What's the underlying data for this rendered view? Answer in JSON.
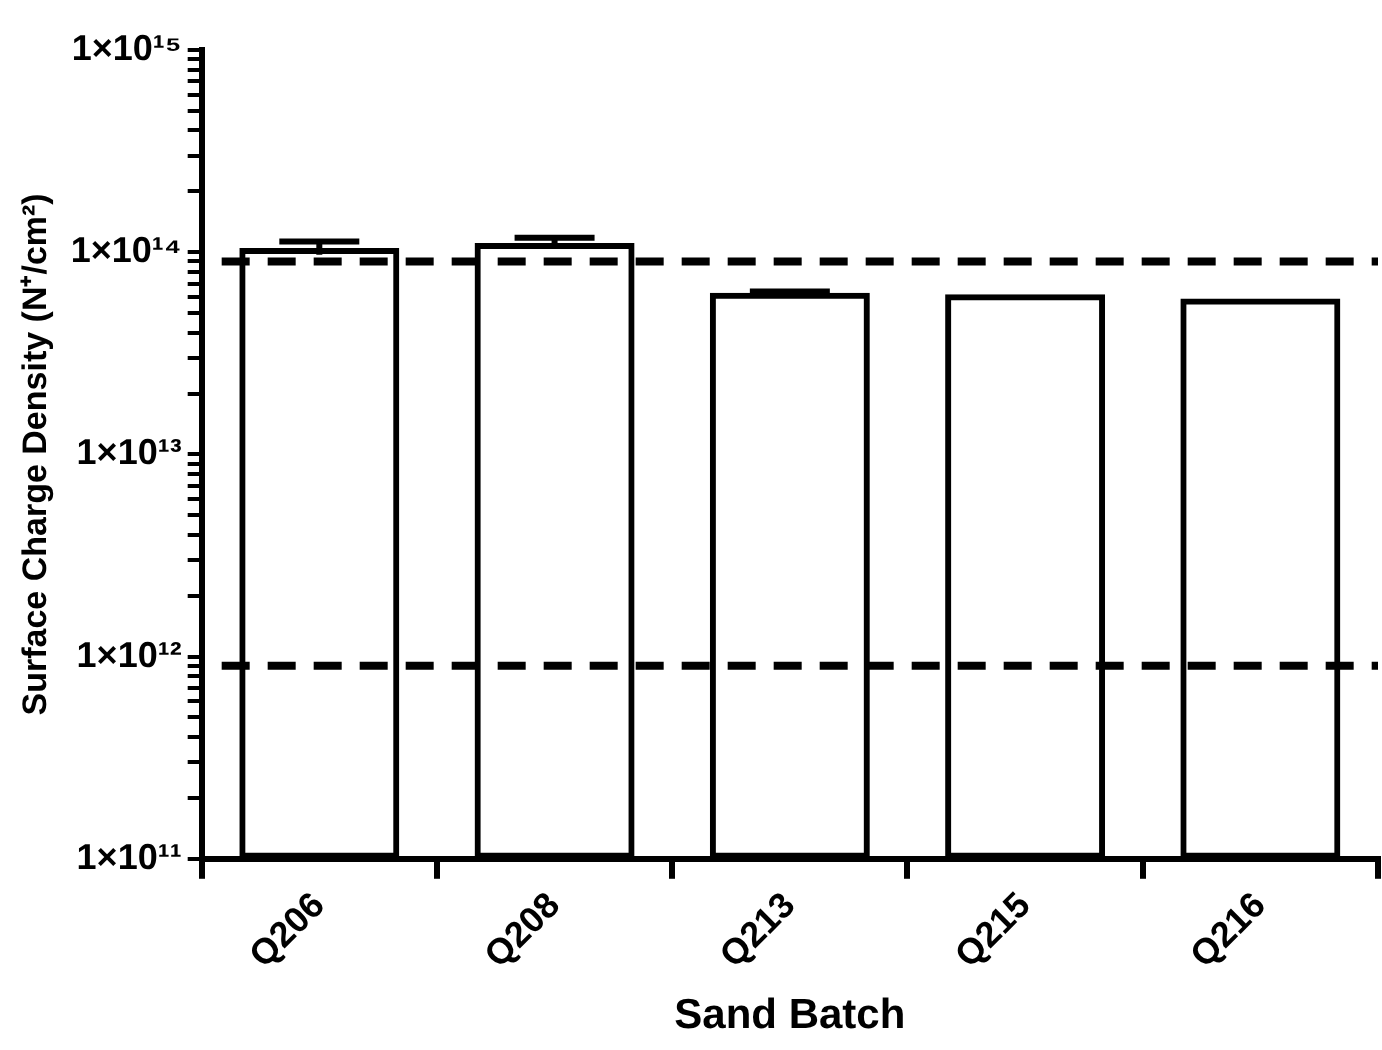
{
  "chart_data": {
    "type": "bar",
    "xlabel": "Sand Batch",
    "ylabel": "Surface Charge Density (N⁺/cm²)",
    "categories": [
      "Q206",
      "Q208",
      "Q213",
      "Q215",
      "Q216"
    ],
    "series": [
      {
        "color": "#000000",
        "values": [
          105000000000000.0,
          111000000000000.0,
          63000000000000.0,
          62000000000000.0,
          59000000000000.0
        ],
        "errors": [
          8000000000000.0,
          7000000000000.0,
          1000000000000.0,
          null,
          null
        ]
      }
    ],
    "log": true,
    "ylim": [
      100000000000.0,
      1000000000000000.0
    ],
    "yticks": [
      {
        "value": 100000000000.0,
        "label": "1×10¹¹"
      },
      {
        "value": 200000000000.0,
        "label": null
      },
      {
        "value": 300000000000.0,
        "label": null
      },
      {
        "value": 400000000000.0,
        "label": null
      },
      {
        "value": 500000000000.0,
        "label": null
      },
      {
        "value": 600000000000.0,
        "label": null
      },
      {
        "value": 700000000000.0,
        "label": null
      },
      {
        "value": 800000000000.0,
        "label": null
      },
      {
        "value": 900000000000.0,
        "label": null
      },
      {
        "value": 1000000000000.0,
        "label": "1×10¹²"
      },
      {
        "value": 2000000000000.0,
        "label": null
      },
      {
        "value": 3000000000000.0,
        "label": null
      },
      {
        "value": 4000000000000.0,
        "label": null
      },
      {
        "value": 5000000000000.0,
        "label": null
      },
      {
        "value": 6000000000000.0,
        "label": null
      },
      {
        "value": 7000000000000.0,
        "label": null
      },
      {
        "value": 8000000000000.0,
        "label": null
      },
      {
        "value": 9000000000000.0,
        "label": null
      },
      {
        "value": 10000000000000.0,
        "label": "1×10¹³"
      },
      {
        "value": 20000000000000.0,
        "label": null
      },
      {
        "value": 30000000000000.0,
        "label": null
      },
      {
        "value": 40000000000000.0,
        "label": null
      },
      {
        "value": 50000000000000.0,
        "label": null
      },
      {
        "value": 60000000000000.0,
        "label": null
      },
      {
        "value": 70000000000000.0,
        "label": null
      },
      {
        "value": 80000000000000.0,
        "label": null
      },
      {
        "value": 90000000000000.0,
        "label": null
      },
      {
        "value": 100000000000000.0,
        "label": "1×10¹⁴"
      },
      {
        "value": 200000000000000.0,
        "label": null
      },
      {
        "value": 300000000000000.0,
        "label": null
      },
      {
        "value": 400000000000000.0,
        "label": null
      },
      {
        "value": 500000000000000.0,
        "label": null
      },
      {
        "value": 600000000000000.0,
        "label": null
      },
      {
        "value": 700000000000000.0,
        "label": null
      },
      {
        "value": 800000000000000.0,
        "label": null
      },
      {
        "value": 900000000000000.0,
        "label": null
      },
      {
        "value": 1000000000000000.0,
        "label": "1×10¹⁵"
      }
    ],
    "ref_lines": [
      {
        "axis": "y",
        "value": 90000000000000.0,
        "color": "#000000",
        "line_style": "dashed"
      },
      {
        "axis": "y",
        "value": 900000000000.0,
        "color": "#000000",
        "line_style": "dashed"
      }
    ],
    "grid": false,
    "legend": false
  }
}
